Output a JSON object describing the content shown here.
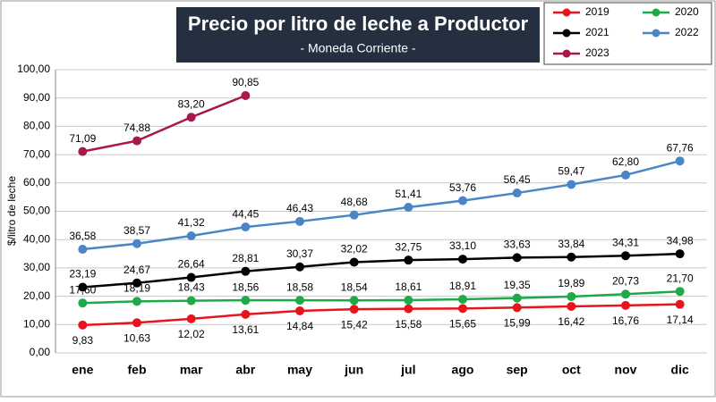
{
  "chart_data": {
    "type": "line",
    "title": "Precio por litro de leche a Productor",
    "subtitle": "- Moneda Corriente -",
    "y_label": "$/litro de leche",
    "categories": [
      "ene",
      "feb",
      "mar",
      "abr",
      "may",
      "jun",
      "jul",
      "ago",
      "sep",
      "oct",
      "nov",
      "dic"
    ],
    "ylim": [
      0,
      100
    ],
    "yticks": [
      {
        "value": 0,
        "label": "0,00"
      },
      {
        "value": 10,
        "label": "10,00"
      },
      {
        "value": 20,
        "label": "20,00"
      },
      {
        "value": 30,
        "label": "30,00"
      },
      {
        "value": 40,
        "label": "40,00"
      },
      {
        "value": 50,
        "label": "50,00"
      },
      {
        "value": 60,
        "label": "60,00"
      },
      {
        "value": 70,
        "label": "70,00"
      },
      {
        "value": 80,
        "label": "80,00"
      },
      {
        "value": 90,
        "label": "90,00"
      },
      {
        "value": 100,
        "label": "100,00"
      }
    ],
    "grid": true,
    "series": [
      {
        "name": "2019",
        "color": "#e8141b",
        "values": [
          9.83,
          10.63,
          12.02,
          13.61,
          14.84,
          15.42,
          15.58,
          15.65,
          15.99,
          16.42,
          16.76,
          17.14
        ],
        "value_labels": [
          "9,83",
          "10,63",
          "12,02",
          "13,61",
          "14,84",
          "15,42",
          "15,58",
          "15,65",
          "15,99",
          "16,42",
          "16,76",
          "17,14"
        ]
      },
      {
        "name": "2020",
        "color": "#1faa4a",
        "values": [
          17.6,
          18.19,
          18.43,
          18.56,
          18.58,
          18.54,
          18.61,
          18.91,
          19.35,
          19.89,
          20.73,
          21.7
        ],
        "value_labels": [
          "17,60",
          "18,19",
          "18,43",
          "18,56",
          "18,58",
          "18,54",
          "18,61",
          "18,91",
          "19,35",
          "19,89",
          "20,73",
          "21,70"
        ]
      },
      {
        "name": "2021",
        "color": "#000000",
        "values": [
          23.19,
          24.67,
          26.64,
          28.81,
          30.37,
          32.02,
          32.75,
          33.1,
          33.63,
          33.84,
          34.31,
          34.98
        ],
        "value_labels": [
          "23,19",
          "24,67",
          "26,64",
          "28,81",
          "30,37",
          "32,02",
          "32,75",
          "33,10",
          "33,63",
          "33,84",
          "34,31",
          "34,98"
        ]
      },
      {
        "name": "2022",
        "color": "#4a86c5",
        "values": [
          36.58,
          38.57,
          41.32,
          44.45,
          46.43,
          48.68,
          51.41,
          53.76,
          56.45,
          59.47,
          62.8,
          67.76
        ],
        "value_labels": [
          "36,58",
          "38,57",
          "41,32",
          "44,45",
          "46,43",
          "48,68",
          "51,41",
          "53,76",
          "56,45",
          "59,47",
          "62,80",
          "67,76"
        ]
      },
      {
        "name": "2023",
        "color": "#a8184f",
        "values": [
          71.09,
          74.88,
          83.2,
          90.85,
          null,
          null,
          null,
          null,
          null,
          null,
          null,
          null
        ],
        "value_labels": [
          "71,09",
          "74,88",
          "83,20",
          "90,85",
          null,
          null,
          null,
          null,
          null,
          null,
          null,
          null
        ]
      }
    ]
  }
}
